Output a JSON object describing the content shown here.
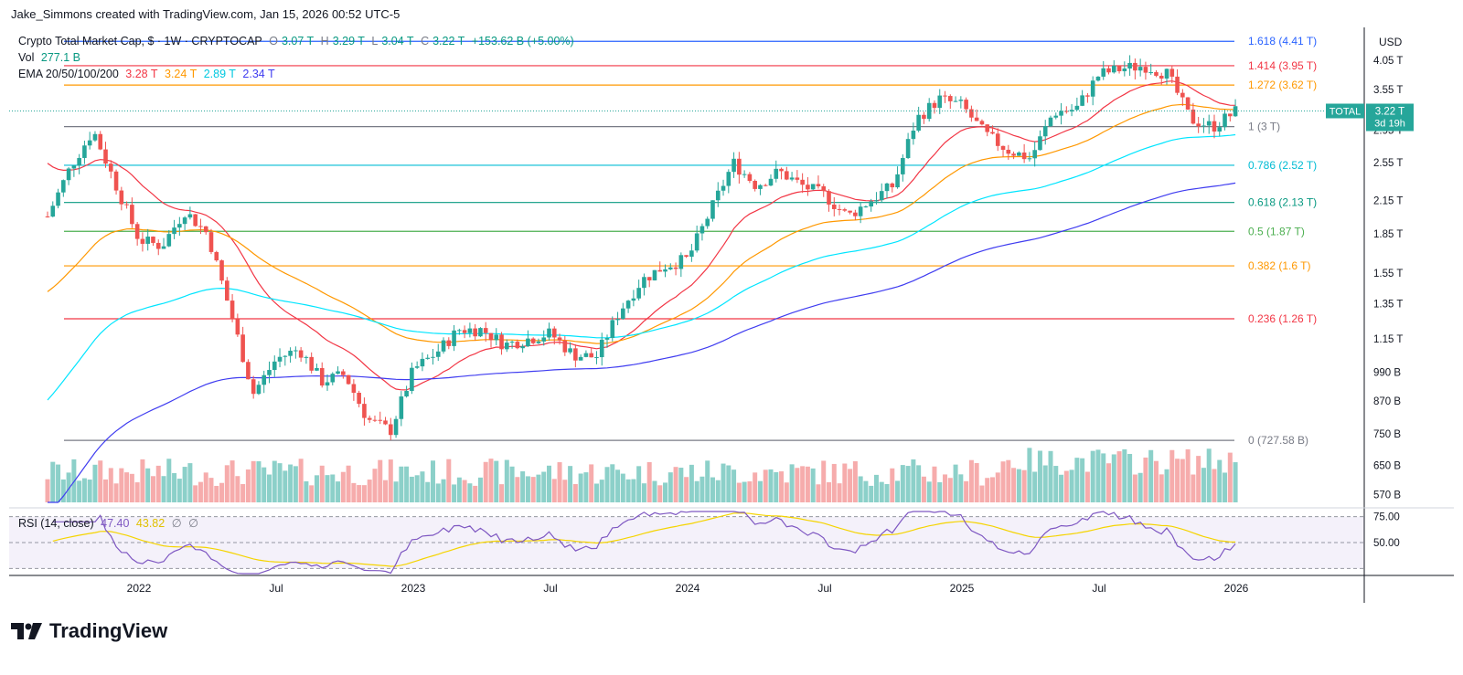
{
  "caption": "Jake_Simmons created with TradingView.com, Jan 15, 2026 00:52 UTC-5",
  "logo_text": "TradingView",
  "legend": {
    "symbol": "Crypto Total Market Cap, $ · 1W · CRYPTOCAP",
    "o_label": "O",
    "o_val": "3.07 T",
    "h_label": "H",
    "h_val": "3.29 T",
    "l_label": "L",
    "l_val": "3.04 T",
    "c_label": "C",
    "c_val": "3.22 T",
    "chg": "+153.62 B (+5.00%)",
    "vol_label": "Vol",
    "vol_val": "277.1 B",
    "ema_label": "EMA 20/50/100/200",
    "ema_vals": [
      "3.28 T",
      "3.24 T",
      "2.89 T",
      "2.34 T"
    ],
    "rsi_label": "RSI (14, close)",
    "rsi_vals": [
      "47.40",
      "43.82",
      "∅",
      "∅"
    ]
  },
  "colors": {
    "up": "#26a69a",
    "down": "#ef5350",
    "ema20": "#f23645",
    "ema50": "#ff9800",
    "ema100": "#00e5ff",
    "ema200": "#3f3cf0",
    "rsi": "#7e57c2",
    "rsi_ma": "#f5d400"
  },
  "price_axis": {
    "currency": "USD",
    "ticks": [
      "4.05 T",
      "3.55 T",
      "3.22 T",
      "2.95 T",
      "2.55 T",
      "2.15 T",
      "1.85 T",
      "1.55 T",
      "1.35 T",
      "1.15 T",
      "990 B",
      "870 B",
      "750 B",
      "650 B",
      "570 B"
    ],
    "tick_values": [
      4.05,
      3.55,
      3.22,
      2.95,
      2.55,
      2.15,
      1.85,
      1.55,
      1.35,
      1.15,
      0.99,
      0.87,
      0.75,
      0.65,
      0.57
    ],
    "range": [
      0.55,
      4.6
    ],
    "scale": "log"
  },
  "current_price": {
    "label": "TOTAL",
    "value": "3.22 T",
    "countdown": "3d 19h"
  },
  "time_axis": [
    "2022",
    "Jul",
    "2023",
    "Jul",
    "2024",
    "Jul",
    "2025",
    "Jul",
    "2026"
  ],
  "fib_levels": [
    {
      "label": "1.618 (4.41 T)",
      "value": 4.41,
      "color": "#2962ff"
    },
    {
      "label": "1.414 (3.95 T)",
      "value": 3.95,
      "color": "#f23645"
    },
    {
      "label": "1.272 (3.62 T)",
      "value": 3.62,
      "color": "#ff9800"
    },
    {
      "label": "1 (3 T)",
      "value": 3.0,
      "color": "#787b86"
    },
    {
      "label": "0.786 (2.52 T)",
      "value": 2.52,
      "color": "#00bcd4"
    },
    {
      "label": "0.618 (2.13 T)",
      "value": 2.13,
      "color": "#089981"
    },
    {
      "label": "0.5 (1.87 T)",
      "value": 1.87,
      "color": "#4caf50"
    },
    {
      "label": "0.382 (1.6 T)",
      "value": 1.6,
      "color": "#ff9800"
    },
    {
      "label": "0.236 (1.26 T)",
      "value": 1.26,
      "color": "#f23645"
    },
    {
      "label": "0 (727.58 B)",
      "value": 0.7276,
      "color": "#787b86"
    }
  ],
  "rsi_axis": {
    "ticks": [
      "75.00",
      "50.00"
    ],
    "tick_values": [
      75,
      50
    ],
    "range": [
      20,
      80
    ]
  },
  "chart_data": {
    "type": "candlestick",
    "title": "Crypto Total Market Cap, $ · 1W · CRYPTOCAP",
    "unit": "T USD",
    "ylim": [
      0.55,
      4.6
    ],
    "scale": "log",
    "grid": false,
    "price_path": [
      [
        "2021-09",
        2.0
      ],
      [
        "2021-10",
        2.5
      ],
      [
        "2021-11",
        2.95
      ],
      [
        "2021-12",
        2.3
      ],
      [
        "2022-01",
        1.8
      ],
      [
        "2022-02",
        1.75
      ],
      [
        "2022-03",
        2.05
      ],
      [
        "2022-04",
        1.85
      ],
      [
        "2022-05",
        1.3
      ],
      [
        "2022-06",
        0.9
      ],
      [
        "2022-07",
        1.05
      ],
      [
        "2022-08",
        1.1
      ],
      [
        "2022-09",
        0.95
      ],
      [
        "2022-10",
        0.98
      ],
      [
        "2022-11",
        0.8
      ],
      [
        "2022-12",
        0.76
      ],
      [
        "2023-01",
        1.0
      ],
      [
        "2023-02",
        1.08
      ],
      [
        "2023-03",
        1.2
      ],
      [
        "2023-04",
        1.2
      ],
      [
        "2023-05",
        1.12
      ],
      [
        "2023-06",
        1.15
      ],
      [
        "2023-07",
        1.18
      ],
      [
        "2023-08",
        1.07
      ],
      [
        "2023-09",
        1.06
      ],
      [
        "2023-10",
        1.3
      ],
      [
        "2023-11",
        1.5
      ],
      [
        "2023-12",
        1.6
      ],
      [
        "2024-01",
        1.65
      ],
      [
        "2024-02",
        2.05
      ],
      [
        "2024-03",
        2.55
      ],
      [
        "2024-04",
        2.3
      ],
      [
        "2024-05",
        2.45
      ],
      [
        "2024-06",
        2.3
      ],
      [
        "2024-07",
        2.2
      ],
      [
        "2024-08",
        2.0
      ],
      [
        "2024-09",
        2.15
      ],
      [
        "2024-10",
        2.3
      ],
      [
        "2024-11",
        3.1
      ],
      [
        "2024-12",
        3.4
      ],
      [
        "2025-01",
        3.3
      ],
      [
        "2025-02",
        2.9
      ],
      [
        "2025-03",
        2.7
      ],
      [
        "2025-04",
        2.6
      ],
      [
        "2025-05",
        3.2
      ],
      [
        "2025-06",
        3.25
      ],
      [
        "2025-07",
        3.8
      ],
      [
        "2025-08",
        3.9
      ],
      [
        "2025-09",
        3.95
      ],
      [
        "2025-10",
        3.8
      ],
      [
        "2025-11",
        3.1
      ],
      [
        "2025-12",
        3.0
      ],
      [
        "2026-01",
        3.22
      ]
    ],
    "series": [
      {
        "name": "EMA 20",
        "last": "3.28 T"
      },
      {
        "name": "EMA 50",
        "last": "3.24 T"
      },
      {
        "name": "EMA 100",
        "last": "2.89 T"
      },
      {
        "name": "EMA 200",
        "last": "2.34 T"
      }
    ],
    "rsi": {
      "name": "RSI (14, close)",
      "last": 47.4,
      "ma_last": 43.82,
      "overbought": 75,
      "midline": 50
    }
  }
}
